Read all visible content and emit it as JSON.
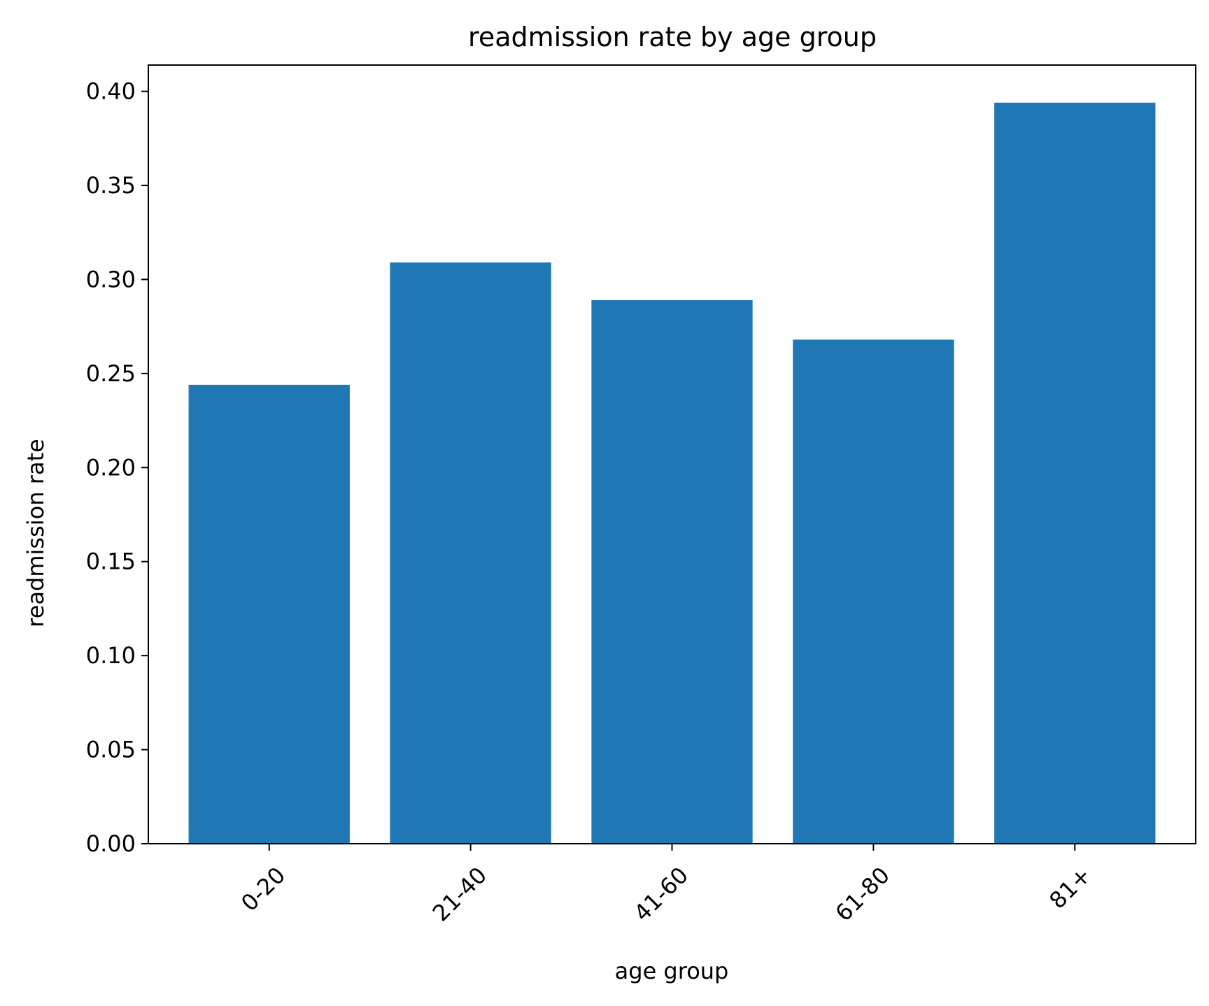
{
  "chart_data": {
    "type": "bar",
    "title": "readmission rate by age group",
    "xlabel": "age group",
    "ylabel": "readmission rate",
    "categories": [
      "0-20",
      "21-40",
      "41-60",
      "61-80",
      "81+"
    ],
    "values": [
      0.244,
      0.309,
      0.289,
      0.268,
      0.394
    ],
    "ylim": [
      0,
      0.414
    ],
    "yticks": [
      "0.00",
      "0.05",
      "0.10",
      "0.15",
      "0.20",
      "0.25",
      "0.30",
      "0.35",
      "0.40"
    ],
    "ytick_values": [
      0,
      0.05,
      0.1,
      0.15,
      0.2,
      0.25,
      0.3,
      0.35,
      0.4
    ],
    "bar_color": "#1f77b4",
    "grid": false,
    "legend": "none"
  }
}
